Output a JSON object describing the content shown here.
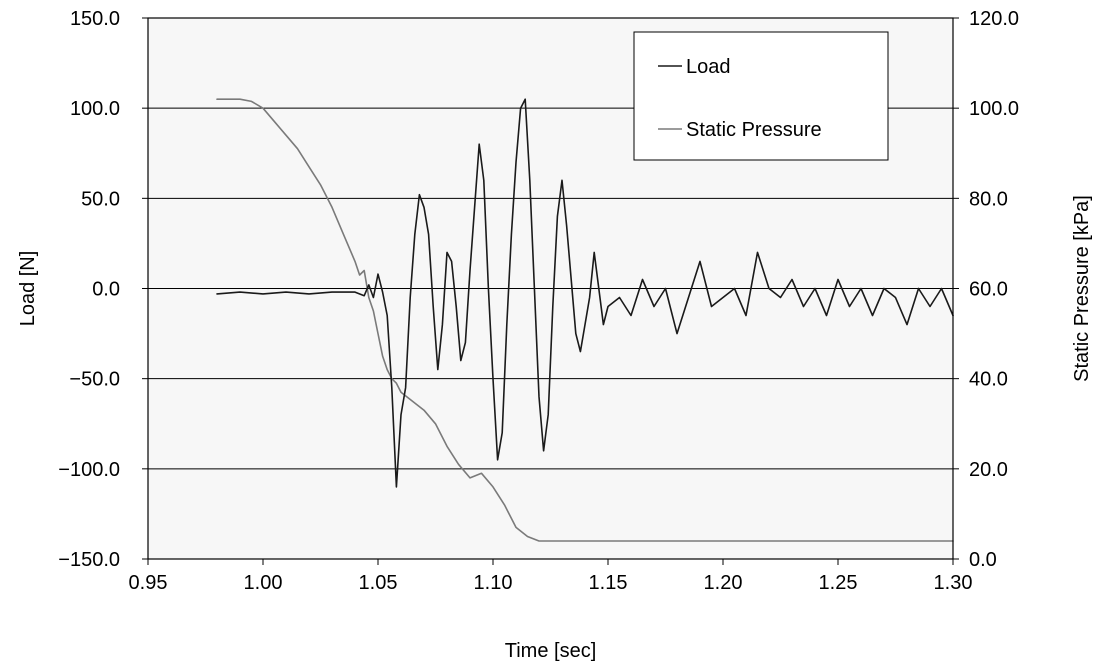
{
  "chart_data": {
    "type": "line",
    "xlabel": "Time [sec]",
    "ylabel_left": "Load [N]",
    "ylabel_right": "Static Pressure [kPa]",
    "xlim": [
      0.95,
      1.3
    ],
    "ylim_left": [
      -150,
      150
    ],
    "ylim_right": [
      0,
      120
    ],
    "x_ticks": [
      "0.95",
      "1.00",
      "1.05",
      "1.10",
      "1.15",
      "1.20",
      "1.25",
      "1.30"
    ],
    "y_left_ticks": [
      "150.0",
      "100.0",
      "50.0",
      "0.0",
      "−50.0",
      "−100.0",
      "−150.0"
    ],
    "y_right_ticks": [
      "120.0",
      "100.0",
      "80.0",
      "60.0",
      "40.0",
      "20.0",
      "0.0"
    ],
    "grid": "horizontal",
    "legend_position": "top-right",
    "colors": {
      "load": "#1a1a1a",
      "pressure": "#7a7a7a",
      "plot_bg": "#f7f7f7"
    },
    "series": [
      {
        "name": "Load",
        "axis": "left",
        "x": [
          0.98,
          0.99,
          1.0,
          1.01,
          1.02,
          1.03,
          1.04,
          1.044,
          1.046,
          1.048,
          1.05,
          1.052,
          1.054,
          1.056,
          1.058,
          1.06,
          1.062,
          1.064,
          1.066,
          1.068,
          1.07,
          1.072,
          1.074,
          1.076,
          1.078,
          1.08,
          1.082,
          1.084,
          1.086,
          1.088,
          1.09,
          1.092,
          1.094,
          1.096,
          1.098,
          1.1,
          1.102,
          1.104,
          1.106,
          1.108,
          1.11,
          1.112,
          1.114,
          1.116,
          1.118,
          1.12,
          1.122,
          1.124,
          1.126,
          1.128,
          1.13,
          1.132,
          1.134,
          1.136,
          1.138,
          1.14,
          1.142,
          1.144,
          1.146,
          1.148,
          1.15,
          1.155,
          1.16,
          1.165,
          1.17,
          1.175,
          1.18,
          1.185,
          1.19,
          1.195,
          1.2,
          1.205,
          1.21,
          1.215,
          1.22,
          1.225,
          1.23,
          1.235,
          1.24,
          1.245,
          1.25,
          1.255,
          1.26,
          1.265,
          1.27,
          1.275,
          1.28,
          1.285,
          1.29,
          1.295,
          1.3
        ],
        "y": [
          -3,
          -2,
          -3,
          -2,
          -3,
          -2,
          -2,
          -4,
          2,
          -5,
          8,
          -2,
          -15,
          -55,
          -110,
          -70,
          -55,
          -5,
          30,
          52,
          45,
          30,
          -10,
          -45,
          -20,
          20,
          15,
          -10,
          -40,
          -30,
          10,
          45,
          80,
          60,
          0,
          -50,
          -95,
          -80,
          -20,
          30,
          70,
          100,
          105,
          60,
          0,
          -60,
          -90,
          -70,
          -10,
          40,
          60,
          35,
          5,
          -25,
          -35,
          -20,
          -5,
          20,
          0,
          -20,
          -10,
          -5,
          -15,
          5,
          -10,
          0,
          -25,
          -5,
          15,
          -10,
          -5,
          0,
          -15,
          20,
          0,
          -5,
          5,
          -10,
          0,
          -15,
          5,
          -10,
          0,
          -15,
          0,
          -5,
          -20,
          0,
          -10,
          0,
          -15
        ]
      },
      {
        "name": "Static Pressure",
        "axis": "right",
        "x": [
          0.98,
          0.985,
          0.99,
          0.995,
          1.0,
          1.005,
          1.01,
          1.015,
          1.02,
          1.025,
          1.03,
          1.035,
          1.04,
          1.042,
          1.044,
          1.046,
          1.048,
          1.05,
          1.052,
          1.054,
          1.056,
          1.058,
          1.06,
          1.065,
          1.07,
          1.075,
          1.08,
          1.085,
          1.09,
          1.095,
          1.1,
          1.105,
          1.11,
          1.115,
          1.12,
          1.15,
          1.2,
          1.25,
          1.3
        ],
        "y": [
          102,
          102,
          102,
          101.5,
          100,
          97,
          94,
          91,
          87,
          83,
          78,
          72,
          66,
          63,
          64,
          58,
          55,
          50,
          45,
          42,
          40,
          39,
          37,
          35,
          33,
          30,
          25,
          21,
          18,
          19,
          16,
          12,
          7,
          5,
          4,
          4,
          4,
          4,
          4
        ]
      }
    ]
  }
}
